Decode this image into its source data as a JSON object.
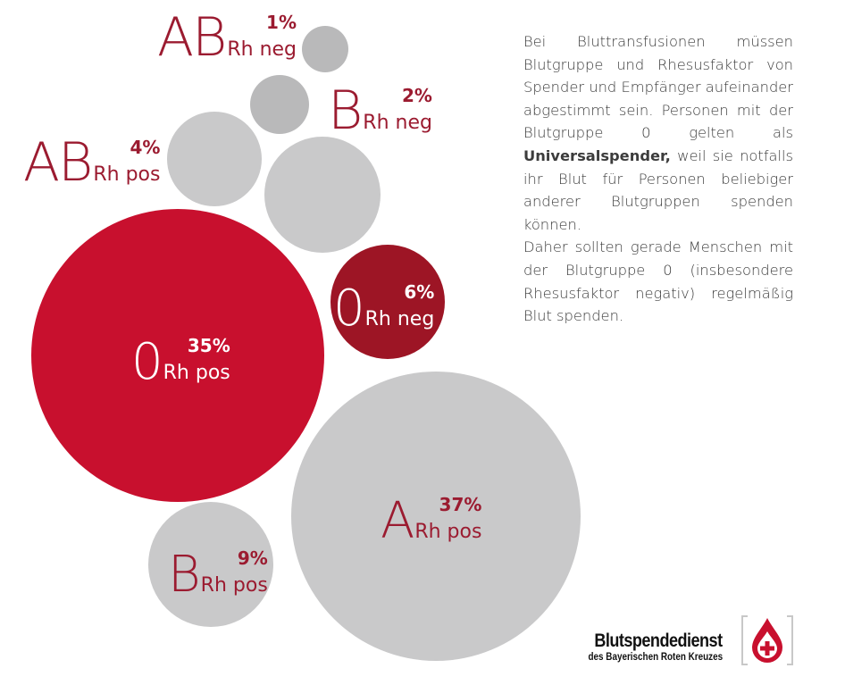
{
  "chart_data": {
    "type": "bubble",
    "unit": "%",
    "colors": {
      "gray": "#c9c9ca",
      "gray_small": "#b9b9ba",
      "red": "#c8102e",
      "dark_red": "#9d1525",
      "label_red": "#9b1b30",
      "white": "#ffffff"
    },
    "bubbles": [
      {
        "group": "AB",
        "rh": "Rh neg",
        "value": 1,
        "pct_label": "1%",
        "fill": "gray_small",
        "label_color": "label_red"
      },
      {
        "group": "B",
        "rh": "Rh neg",
        "value": 2,
        "pct_label": "2%",
        "fill": "gray_small",
        "label_color": "label_red"
      },
      {
        "group": "AB",
        "rh": "Rh pos",
        "value": 4,
        "pct_label": "4%",
        "fill": "gray",
        "label_color": "label_red"
      },
      {
        "group": "0",
        "rh": "Rh neg",
        "value": 6,
        "pct_label": "6%",
        "fill": "dark_red",
        "label_color": "white"
      },
      {
        "group": "B",
        "rh": "Rh pos",
        "value": 9,
        "pct_label": "9%",
        "fill": "gray",
        "label_color": "label_red"
      },
      {
        "group": "0",
        "rh": "Rh pos",
        "value": 35,
        "pct_label": "35%",
        "fill": "red",
        "label_color": "white"
      },
      {
        "group": "A",
        "rh": "Rh pos",
        "value": 37,
        "pct_label": "37%",
        "fill": "gray",
        "label_color": "label_red"
      }
    ]
  },
  "info": {
    "p1_part1": "Bei Bluttransfusionen müssen Blutgruppe und Rhesusfaktor von Spender und Empfänger aufeinander abgestimmt sein. Personen mit der Blutgruppe 0 gelten als ",
    "p1_bold": "Universalspender,",
    "p1_part2": " weil sie notfalls ihr Blut für Personen beliebiger anderer Blutgruppen spenden können.",
    "p2": "Daher sollten gerade Menschen mit der Blutgruppe 0 (insbesondere Rhesusfaktor negativ) regelmäßig Blut spenden."
  },
  "logo": {
    "title": "Blutspendedienst",
    "subtitle": "des Bayerischen Roten Kreuzes",
    "icon": "blood-drop-cross-icon",
    "color": "#c8102e"
  }
}
